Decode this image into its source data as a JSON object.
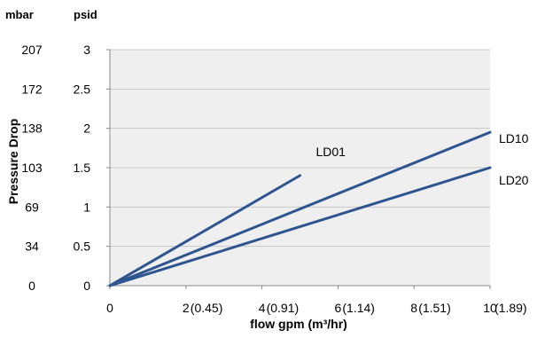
{
  "chart_data": {
    "type": "line",
    "unit_labels": {
      "left": "mbar",
      "right": "psid"
    },
    "ylabel": "Pressure Drop",
    "xlabel": "flow gpm (m³/hr)",
    "xlim": [
      0,
      10
    ],
    "ylim": [
      0,
      3
    ],
    "grid": true,
    "x_ticks": [
      {
        "value": 0,
        "label": "0",
        "secondary": ""
      },
      {
        "value": 2,
        "label": "2",
        "secondary": "(0.45)"
      },
      {
        "value": 4,
        "label": "4",
        "secondary": "(0.91)"
      },
      {
        "value": 6,
        "label": "6",
        "secondary": "(1.14)"
      },
      {
        "value": 8,
        "label": "8",
        "secondary": "(1.51)"
      },
      {
        "value": 10,
        "label": "10",
        "secondary": "(1.89)"
      }
    ],
    "y_ticks": [
      {
        "value": 0,
        "psid": "0",
        "mbar": "0"
      },
      {
        "value": 0.5,
        "psid": "0.5",
        "mbar": "34"
      },
      {
        "value": 1,
        "psid": "1",
        "mbar": "69"
      },
      {
        "value": 1.5,
        "psid": "1.5",
        "mbar": "103"
      },
      {
        "value": 2,
        "psid": "2",
        "mbar": "138"
      },
      {
        "value": 2.5,
        "psid": "2.5",
        "mbar": "172"
      },
      {
        "value": 3,
        "psid": "3",
        "mbar": "207"
      }
    ],
    "series": [
      {
        "name": "LD01",
        "color": "#2e5590",
        "x": [
          0,
          5
        ],
        "y": [
          0,
          1.4
        ]
      },
      {
        "name": "LD10",
        "color": "#2e5590",
        "x": [
          0,
          10
        ],
        "y": [
          0,
          1.95
        ]
      },
      {
        "name": "LD20",
        "color": "#2e5590",
        "x": [
          0,
          10
        ],
        "y": [
          0,
          1.5
        ]
      }
    ],
    "plot_bg": "#efefef",
    "grid_color": "#c8c8c8"
  }
}
